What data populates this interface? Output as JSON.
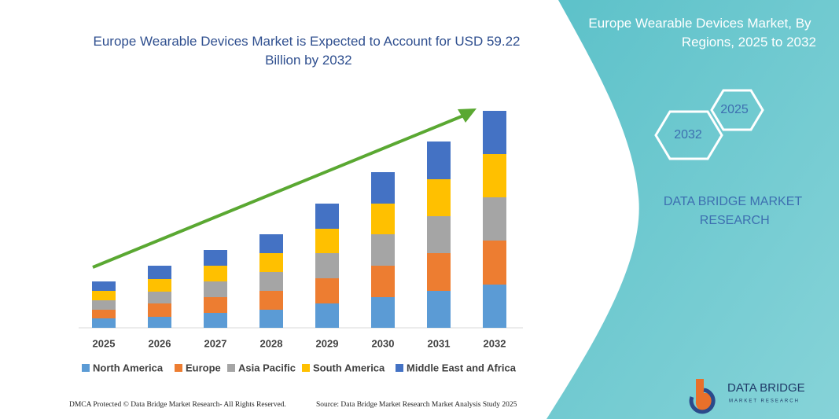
{
  "chart_data": {
    "type": "stacked-bar",
    "title": "Europe Wearable Devices Market is Expected to Account for USD 59.22 Billion by 2032",
    "categories": [
      "2025",
      "2026",
      "2027",
      "2028",
      "2029",
      "2030",
      "2031",
      "2032"
    ],
    "series": [
      {
        "name": "North America",
        "color": "#5b9bd5",
        "values": [
          12,
          14,
          19,
          23,
          31,
          39,
          47,
          55
        ]
      },
      {
        "name": "Europe",
        "color": "#ed7d31",
        "values": [
          11,
          17,
          20,
          24,
          32,
          40,
          48,
          56
        ]
      },
      {
        "name": "Asia Pacific",
        "color": "#a5a5a5",
        "values": [
          12,
          15,
          20,
          24,
          32,
          40,
          47,
          55
        ]
      },
      {
        "name": "South America",
        "color": "#ffc000",
        "values": [
          12,
          16,
          20,
          24,
          31,
          39,
          47,
          55
        ]
      },
      {
        "name": "Middle East and Africa",
        "color": "#4472c4",
        "values": [
          12,
          17,
          20,
          24,
          32,
          40,
          48,
          55
        ]
      }
    ]
  },
  "panel": {
    "title": "Europe Wearable Devices Market, By Regions, 2025 to 2032",
    "hex_top": "2025",
    "hex_bottom": "2032",
    "brand": "DATA BRIDGE MARKET RESEARCH"
  },
  "logo": {
    "name": "DATA BRIDGE",
    "tagline": "MARKET RESEARCH"
  },
  "footer": {
    "left": "DMCA Protected © Data Bridge Market Research- All Rights Reserved.",
    "right": "Source: Data Bridge Market Research Market Analysis Study 2025"
  }
}
